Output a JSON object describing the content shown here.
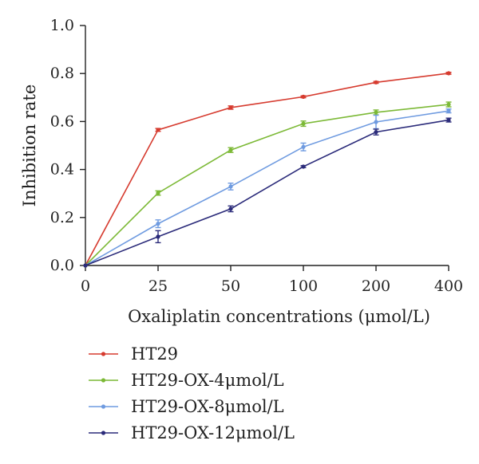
{
  "chart_data": {
    "type": "line",
    "xlabel": "Oxaliplatin concentrations (μmol/L)",
    "ylabel": "Inhibition rate",
    "categories": [
      "0",
      "25",
      "50",
      "100",
      "200",
      "400"
    ],
    "ylim": [
      0.0,
      1.0
    ],
    "yticks": [
      "0.0",
      "0.2",
      "0.4",
      "0.6",
      "0.8",
      "1.0"
    ],
    "grid": false,
    "legend_position": "bottom-left",
    "series": [
      {
        "name": "HT29",
        "color": "#d63b2f",
        "values": [
          0.0,
          0.565,
          0.658,
          0.703,
          0.763,
          0.801
        ],
        "errors": [
          0.0,
          0.006,
          0.007,
          0.004,
          0.004,
          0.004
        ]
      },
      {
        "name": "HT29-OX-4μmol/L",
        "color": "#7cb936",
        "values": [
          0.0,
          0.302,
          0.481,
          0.591,
          0.638,
          0.671
        ],
        "errors": [
          0.0,
          0.009,
          0.01,
          0.011,
          0.01,
          0.01
        ]
      },
      {
        "name": "HT29-OX-8μmol/L",
        "color": "#6f9be0",
        "values": [
          0.0,
          0.174,
          0.329,
          0.494,
          0.598,
          0.644
        ],
        "errors": [
          0.0,
          0.016,
          0.014,
          0.016,
          0.028,
          0.008
        ]
      },
      {
        "name": "HT29-OX-12μmol/L",
        "color": "#2b2b7a",
        "values": [
          0.0,
          0.12,
          0.236,
          0.412,
          0.556,
          0.606
        ],
        "errors": [
          0.0,
          0.025,
          0.012,
          0.004,
          0.012,
          0.008
        ]
      }
    ]
  }
}
